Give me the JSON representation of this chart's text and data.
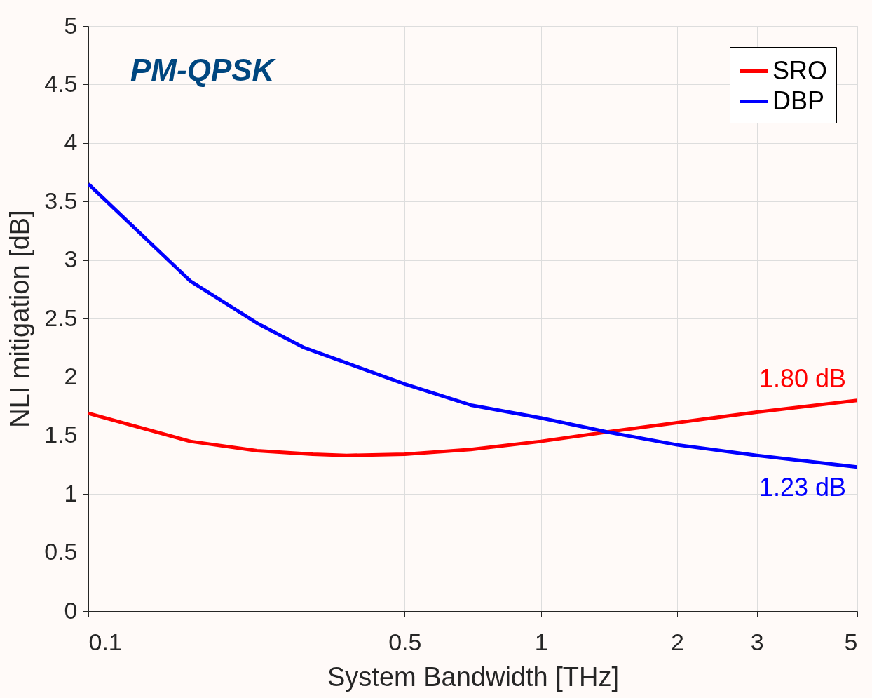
{
  "chart_data": {
    "type": "line",
    "xlabel": "System Bandwidth  [THz]",
    "ylabel": "NLI mitigation  [dB]",
    "annotations": [
      "PM-QPSK",
      {
        "text": "1.80 dB",
        "x": 5,
        "y": 1.8
      },
      {
        "text": "1.23 dB",
        "x": 5,
        "y": 1.23
      }
    ],
    "series": [
      {
        "name": "SRO",
        "color": "#ff0000",
        "x": [
          0.1,
          0.168,
          0.236,
          0.313,
          0.372,
          0.5,
          0.7,
          1,
          1.4,
          2,
          3,
          5
        ],
        "values": [
          1.69,
          1.45,
          1.37,
          1.34,
          1.33,
          1.34,
          1.38,
          1.45,
          1.53,
          1.61,
          1.7,
          1.8
        ]
      },
      {
        "name": "DBP",
        "color": "#0000ff",
        "x": [
          0.1,
          0.168,
          0.236,
          0.3,
          0.372,
          0.5,
          0.7,
          1,
          1.4,
          2,
          3,
          5
        ],
        "values": [
          3.65,
          2.82,
          2.46,
          2.25,
          2.12,
          1.94,
          1.76,
          1.65,
          1.53,
          1.42,
          1.33,
          1.23
        ]
      }
    ],
    "log": "x",
    "xlim": [
      0.1,
      5
    ],
    "xticks": [
      0.1,
      0.5,
      1,
      2,
      3,
      5
    ],
    "ylim": [
      0,
      5
    ],
    "yticks": [
      0,
      0.5,
      1,
      1.5,
      2,
      2.5,
      3,
      3.5,
      4,
      4.5,
      5
    ],
    "grid": true,
    "legend": "top right",
    "line_style": "solid",
    "marker": "none"
  }
}
